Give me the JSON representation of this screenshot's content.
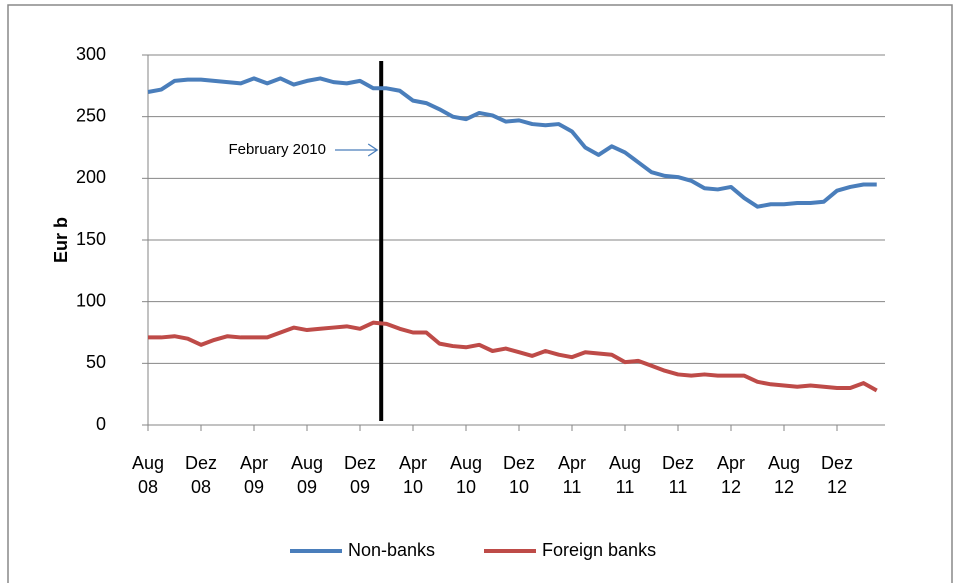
{
  "chart_data": {
    "type": "line",
    "y_label": "Eur b",
    "annotation": {
      "text": "February 2010",
      "x_index": 17.6
    },
    "categories": [
      "Aug 08",
      null,
      null,
      null,
      "Dez 08",
      null,
      null,
      null,
      "Apr 09",
      null,
      null,
      null,
      "Aug 09",
      null,
      null,
      null,
      "Dez 09",
      null,
      null,
      null,
      "Apr 10",
      null,
      null,
      null,
      "Aug 10",
      null,
      null,
      null,
      "Dez 10",
      null,
      null,
      null,
      "Apr 11",
      null,
      null,
      null,
      "Aug 11",
      null,
      null,
      null,
      "Dez 11",
      null,
      null,
      null,
      "Apr 12",
      null,
      null,
      null,
      "Aug 12",
      null,
      null,
      null,
      "Dez 12",
      null,
      null,
      null
    ],
    "series": [
      {
        "name": "Non-banks",
        "color": "#4a7ebb",
        "values": [
          270,
          272,
          279,
          280,
          280,
          279,
          278,
          277,
          281,
          277,
          281,
          276,
          279,
          281,
          278,
          277,
          279,
          273,
          273,
          271,
          263,
          261,
          256,
          250,
          248,
          253,
          251,
          246,
          247,
          244,
          243,
          244,
          238,
          225,
          219,
          226,
          221,
          213,
          205,
          202,
          201,
          198,
          192,
          191,
          193,
          184,
          177,
          179,
          179,
          180,
          180,
          181,
          190,
          193,
          195,
          195
        ]
      },
      {
        "name": "Foreign banks",
        "color": "#be4b48",
        "values": [
          71,
          71,
          72,
          70,
          65,
          69,
          72,
          71,
          71,
          71,
          75,
          79,
          77,
          78,
          79,
          80,
          78,
          83,
          82,
          78,
          75,
          75,
          66,
          64,
          63,
          65,
          60,
          62,
          59,
          56,
          60,
          57,
          55,
          59,
          58,
          57,
          51,
          52,
          48,
          44,
          41,
          40,
          41,
          40,
          40,
          40,
          35,
          33,
          32,
          31,
          32,
          31,
          30,
          30,
          34,
          28
        ]
      }
    ],
    "ylim": [
      0,
      300
    ],
    "yticks": [
      0,
      50,
      100,
      150,
      200,
      250,
      300
    ],
    "grid": true,
    "legend": "bottom"
  }
}
